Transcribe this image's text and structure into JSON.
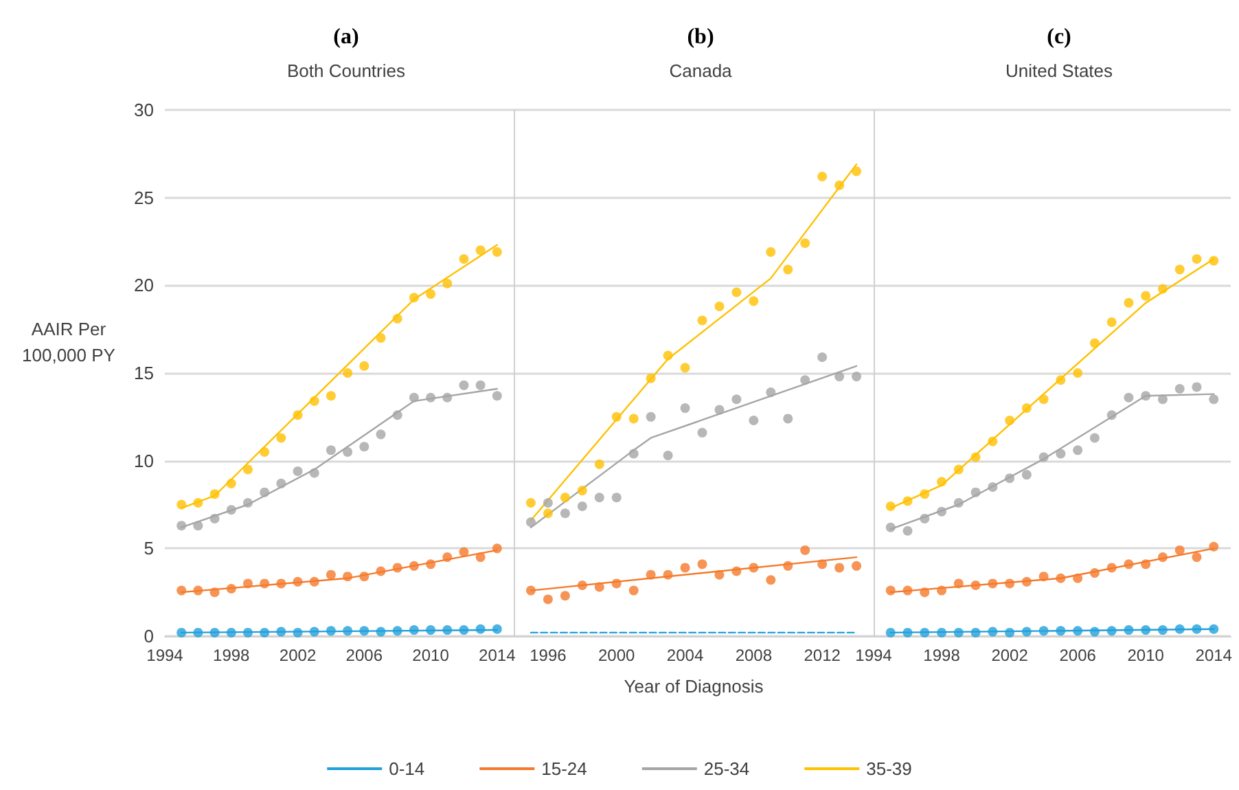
{
  "chart_data": [
    {
      "type": "scatter",
      "title": "(a)",
      "subtitle": "Both Countries",
      "ylabel": "AAIR Per 100,000 PY",
      "marker": "circle",
      "grid": "y",
      "xlim": [
        1994,
        2015
      ],
      "xticks": [
        1994,
        1998,
        2002,
        2006,
        2010,
        2014
      ],
      "ylim": [
        0,
        30
      ],
      "yticks": [
        0,
        5,
        10,
        15,
        20,
        25,
        30
      ],
      "x": [
        1995,
        1996,
        1997,
        1998,
        1999,
        2000,
        2001,
        2002,
        2003,
        2004,
        2005,
        2006,
        2007,
        2008,
        2009,
        2010,
        2011,
        2012,
        2013,
        2014
      ],
      "series": [
        {
          "color": "#21a0db",
          "values": [
            0.2,
            0.2,
            0.2,
            0.2,
            0.2,
            0.2,
            0.25,
            0.2,
            0.25,
            0.3,
            0.3,
            0.3,
            0.25,
            0.3,
            0.35,
            0.35,
            0.35,
            0.35,
            0.4,
            0.4
          ]
        },
        {
          "color": "#f5792a",
          "values": [
            2.6,
            2.6,
            2.5,
            2.7,
            3.0,
            3.0,
            3.0,
            3.1,
            3.1,
            3.5,
            3.4,
            3.4,
            3.7,
            3.9,
            4.0,
            4.1,
            4.5,
            4.8,
            4.5,
            5.0
          ]
        },
        {
          "color": "#a5a5a5",
          "values": [
            6.3,
            6.3,
            6.7,
            7.2,
            7.6,
            8.2,
            8.7,
            9.4,
            9.3,
            10.6,
            10.5,
            10.8,
            11.5,
            12.6,
            13.6,
            13.6,
            13.6,
            14.3,
            14.3,
            13.7
          ]
        },
        {
          "color": "#ffc000",
          "values": [
            7.5,
            7.6,
            8.1,
            8.7,
            9.5,
            10.5,
            11.3,
            12.6,
            13.4,
            13.7,
            15.0,
            15.4,
            17.0,
            18.1,
            19.3,
            19.5,
            20.1,
            21.5,
            22.0,
            21.9
          ]
        },
        {
          "type": "line",
          "marker": "none",
          "color": "#21a0db",
          "x": [
            1995,
            2014
          ],
          "values": [
            0.2,
            0.35
          ]
        },
        {
          "type": "line",
          "marker": "none",
          "color": "#f5792a",
          "x": [
            1995,
            2005,
            2014
          ],
          "values": [
            2.5,
            3.3,
            4.9
          ]
        },
        {
          "type": "line",
          "marker": "none",
          "color": "#a5a5a5",
          "x": [
            1995,
            1999,
            2003,
            2009,
            2014
          ],
          "values": [
            6.2,
            7.5,
            9.5,
            13.4,
            14.1
          ]
        },
        {
          "type": "line",
          "marker": "none",
          "color": "#ffc000",
          "x": [
            1995,
            1997,
            2009,
            2014
          ],
          "values": [
            7.3,
            8.0,
            19.2,
            22.3
          ]
        }
      ]
    },
    {
      "type": "scatter",
      "title": "(b)",
      "subtitle": "Canada",
      "xlabel": "Year of Diagnosis",
      "marker": "circle",
      "grid": "y",
      "legend": "bottom",
      "tick_labels": "x",
      "xlim": [
        1994,
        2015
      ],
      "xticks": [
        1996,
        2000,
        2004,
        2008,
        2012
      ],
      "ylim": [
        0,
        30
      ],
      "yticks": [
        0,
        5,
        10,
        15,
        20,
        25,
        30
      ],
      "x": [
        1995,
        1996,
        1997,
        1998,
        1999,
        2000,
        2001,
        2002,
        2003,
        2004,
        2005,
        2006,
        2007,
        2008,
        2009,
        2010,
        2011,
        2012,
        2013,
        2014
      ],
      "series": [
        {
          "color": "#f5792a",
          "values": [
            2.6,
            2.1,
            2.3,
            2.9,
            2.8,
            3.0,
            2.6,
            3.5,
            3.5,
            3.9,
            4.1,
            3.5,
            3.7,
            3.9,
            3.2,
            4.0,
            4.9,
            4.1,
            3.9,
            4.0
          ]
        },
        {
          "color": "#a5a5a5",
          "values": [
            6.5,
            7.6,
            7.0,
            7.4,
            7.9,
            7.9,
            10.4,
            12.5,
            10.3,
            13.0,
            11.6,
            12.9,
            13.5,
            12.3,
            13.9,
            12.4,
            14.6,
            15.9,
            14.8,
            14.8
          ]
        },
        {
          "color": "#ffc000",
          "values": [
            7.6,
            7.0,
            7.9,
            8.3,
            9.8,
            12.5,
            12.4,
            14.7,
            16.0,
            15.3,
            18.0,
            18.8,
            19.6,
            19.1,
            21.9,
            20.9,
            22.4,
            26.2,
            25.7,
            26.5
          ]
        },
        {
          "type": "line",
          "name": "0-14",
          "marker": "none",
          "line_style": "dashed",
          "color": "#21a0db",
          "x": [
            1995,
            2014
          ],
          "values": [
            0.2,
            0.2
          ]
        },
        {
          "type": "line",
          "name": "15-24",
          "marker": "none",
          "color": "#f5792a",
          "x": [
            1995,
            2014
          ],
          "values": [
            2.6,
            4.5
          ]
        },
        {
          "type": "line",
          "name": "25-34",
          "marker": "none",
          "color": "#a5a5a5",
          "x": [
            1995,
            2001,
            2002,
            2014
          ],
          "values": [
            6.2,
            10.6,
            11.3,
            15.4
          ]
        },
        {
          "type": "line",
          "name": "35-39",
          "marker": "none",
          "color": "#ffc000",
          "x": [
            1995,
            2003,
            2009,
            2014
          ],
          "values": [
            6.6,
            15.8,
            20.4,
            26.9
          ]
        }
      ]
    },
    {
      "type": "scatter",
      "title": "(c)",
      "subtitle": "United States",
      "marker": "circle",
      "grid": "y",
      "tick_labels": "x",
      "xlim": [
        1994,
        2015
      ],
      "xticks": [
        1994,
        1998,
        2002,
        2006,
        2010,
        2014
      ],
      "ylim": [
        0,
        30
      ],
      "yticks": [
        0,
        5,
        10,
        15,
        20,
        25,
        30
      ],
      "x": [
        1995,
        1996,
        1997,
        1998,
        1999,
        2000,
        2001,
        2002,
        2003,
        2004,
        2005,
        2006,
        2007,
        2008,
        2009,
        2010,
        2011,
        2012,
        2013,
        2014
      ],
      "series": [
        {
          "color": "#21a0db",
          "values": [
            0.2,
            0.2,
            0.2,
            0.2,
            0.2,
            0.2,
            0.25,
            0.2,
            0.25,
            0.3,
            0.3,
            0.3,
            0.25,
            0.3,
            0.35,
            0.35,
            0.35,
            0.4,
            0.4,
            0.4
          ]
        },
        {
          "color": "#f5792a",
          "values": [
            2.6,
            2.6,
            2.5,
            2.6,
            3.0,
            2.9,
            3.0,
            3.0,
            3.1,
            3.4,
            3.3,
            3.3,
            3.6,
            3.9,
            4.1,
            4.1,
            4.5,
            4.9,
            4.5,
            5.1
          ]
        },
        {
          "color": "#a5a5a5",
          "values": [
            6.2,
            6.0,
            6.7,
            7.1,
            7.6,
            8.2,
            8.5,
            9.0,
            9.2,
            10.2,
            10.4,
            10.6,
            11.3,
            12.6,
            13.6,
            13.7,
            13.5,
            14.1,
            14.2,
            13.5
          ]
        },
        {
          "color": "#ffc000",
          "values": [
            7.4,
            7.7,
            8.1,
            8.8,
            9.5,
            10.2,
            11.1,
            12.3,
            13.0,
            13.5,
            14.6,
            15.0,
            16.7,
            17.9,
            19.0,
            19.4,
            19.8,
            20.9,
            21.5,
            21.4
          ]
        },
        {
          "type": "line",
          "marker": "none",
          "color": "#21a0db",
          "x": [
            1995,
            2014
          ],
          "values": [
            0.2,
            0.4
          ]
        },
        {
          "type": "line",
          "marker": "none",
          "color": "#f5792a",
          "x": [
            1995,
            2005,
            2014
          ],
          "values": [
            2.5,
            3.3,
            5.0
          ]
        },
        {
          "type": "line",
          "marker": "none",
          "color": "#a5a5a5",
          "x": [
            1995,
            1999,
            2004,
            2010,
            2014
          ],
          "values": [
            6.1,
            7.5,
            10.1,
            13.7,
            13.8
          ]
        },
        {
          "type": "line",
          "marker": "none",
          "color": "#ffc000",
          "x": [
            1995,
            1998,
            2010,
            2014
          ],
          "values": [
            7.3,
            8.6,
            19.0,
            21.5
          ]
        }
      ]
    }
  ]
}
